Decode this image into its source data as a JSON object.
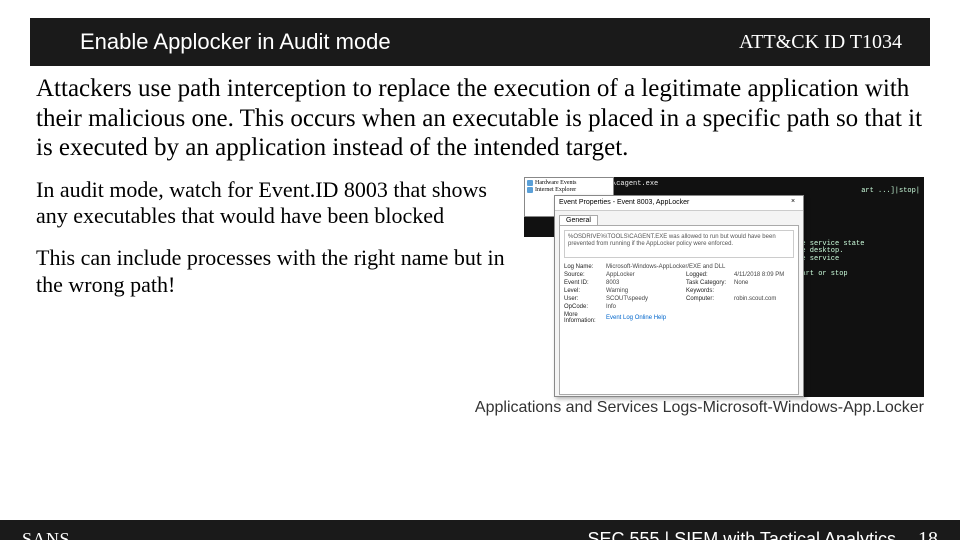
{
  "title_bar": {
    "left": "Enable Applocker in Audit mode",
    "right": "ATT&CK ID  T1034",
    "bg": "#1a1a1a",
    "fg": "#ffffff"
  },
  "body_paragraph": "Attackers use path interception to replace the execution of a legitimate application with their malicious one.  This occurs when an executable is placed in a specific path so that it is executed by an application instead of the intended target.",
  "mid_paragraph_1": "In audit mode, watch for Event.ID 8003 that shows any executables that would have been blocked",
  "mid_paragraph_2": "This can include processes with the right name but in the wrong path!",
  "caption": "Applications and Services Logs-Microsoft-Windows-App.Locker",
  "footer": {
    "logo": "SANS",
    "course": "SEC 555 | SIEM with Tactical Analytics",
    "page": "18",
    "bg": "#1a1a1a",
    "fg": "#ffffff"
  },
  "screenshot": {
    "cmd_line": "C:\\tools\\cagent tool\\cagent.exe",
    "cmd_tail_1": "art ...]|stop|",
    "cmd_tail_2": "the service state",
    "cmd_tail_3": "the desktop.",
    "cmd_tail_4": "the service",
    "cmd_tail_5": "start or stop",
    "eventvwr": {
      "row1": "Hardware Events",
      "row2": "Internet Explorer"
    },
    "dialog": {
      "title": "Event Properties - Event 8003, AppLocker",
      "tab": "General",
      "message": "%OSDRIVE%\\TOOLS\\CAGENT.EXE was allowed to run but would have been prevented from running if the AppLocker policy were enforced.",
      "fields": {
        "log_name_lbl": "Log Name:",
        "log_name_val": "Microsoft-Windows-AppLocker/EXE and DLL",
        "source_lbl": "Source:",
        "source_val": "AppLocker",
        "logged_lbl": "Logged:",
        "logged_val": "4/11/2018 8:09 PM",
        "eventid_lbl": "Event ID:",
        "eventid_val": "8003",
        "taskcat_lbl": "Task Category:",
        "taskcat_val": "None",
        "level_lbl": "Level:",
        "level_val": "Warning",
        "keywords_lbl": "Keywords:",
        "keywords_val": "",
        "user_lbl": "User:",
        "user_val": "SCOUT\\speedy",
        "computer_lbl": "Computer:",
        "computer_val": "robin.scout.com",
        "opcode_lbl": "OpCode:",
        "opcode_val": "Info",
        "moreinfo_lbl": "More Information:",
        "moreinfo_link": "Event Log Online Help"
      }
    }
  }
}
